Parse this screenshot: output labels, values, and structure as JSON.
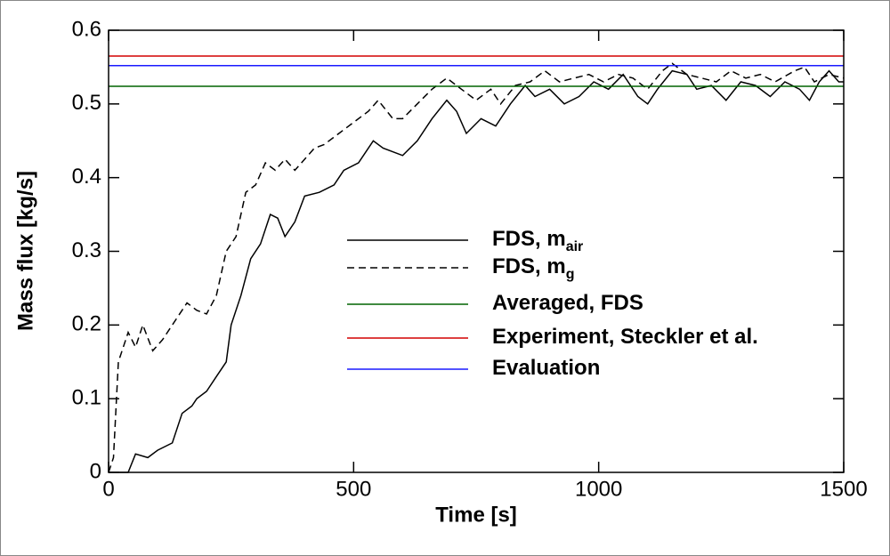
{
  "chart_data": {
    "type": "line",
    "xlabel": "Time [s]",
    "ylabel": "Mass flux [kg/s]",
    "xlim": [
      0,
      1500
    ],
    "ylim": [
      0,
      0.6
    ],
    "xticks": [
      0,
      500,
      1000,
      1500
    ],
    "yticks": [
      0,
      0.1,
      0.2,
      0.3,
      0.4,
      0.5,
      0.6
    ],
    "series": [
      {
        "name": "FDS, m",
        "name_sub": "air",
        "color": "#000000",
        "line_style": "solid",
        "x": [
          0,
          40,
          55,
          80,
          100,
          130,
          150,
          170,
          180,
          200,
          220,
          240,
          250,
          270,
          290,
          310,
          330,
          345,
          360,
          380,
          400,
          430,
          460,
          480,
          510,
          540,
          560,
          600,
          630,
          660,
          690,
          710,
          730,
          760,
          790,
          820,
          850,
          870,
          900,
          930,
          960,
          990,
          1020,
          1050,
          1080,
          1100,
          1120,
          1150,
          1180,
          1200,
          1230,
          1260,
          1290,
          1320,
          1350,
          1380,
          1410,
          1430,
          1450,
          1470,
          1490,
          1500
        ],
        "values": [
          0,
          0,
          0.025,
          0.02,
          0.03,
          0.04,
          0.08,
          0.09,
          0.1,
          0.11,
          0.13,
          0.15,
          0.2,
          0.24,
          0.29,
          0.31,
          0.35,
          0.345,
          0.32,
          0.34,
          0.375,
          0.38,
          0.39,
          0.41,
          0.42,
          0.45,
          0.44,
          0.43,
          0.45,
          0.48,
          0.505,
          0.49,
          0.46,
          0.48,
          0.47,
          0.5,
          0.525,
          0.51,
          0.52,
          0.5,
          0.51,
          0.53,
          0.52,
          0.54,
          0.51,
          0.5,
          0.52,
          0.545,
          0.54,
          0.52,
          0.525,
          0.505,
          0.53,
          0.525,
          0.51,
          0.53,
          0.52,
          0.505,
          0.53,
          0.545,
          0.53,
          0.53
        ]
      },
      {
        "name": "FDS, m",
        "name_sub": "g",
        "color": "#000000",
        "line_style": "dashed",
        "x": [
          0,
          10,
          20,
          40,
          55,
          70,
          90,
          110,
          130,
          160,
          180,
          200,
          220,
          240,
          260,
          280,
          300,
          320,
          340,
          360,
          380,
          420,
          440,
          470,
          500,
          530,
          550,
          580,
          600,
          630,
          660,
          690,
          720,
          750,
          780,
          800,
          830,
          860,
          890,
          920,
          950,
          980,
          1010,
          1040,
          1070,
          1100,
          1130,
          1150,
          1180,
          1210,
          1240,
          1270,
          1300,
          1330,
          1360,
          1400,
          1420,
          1440,
          1470,
          1500
        ],
        "values": [
          0,
          0.02,
          0.15,
          0.19,
          0.17,
          0.2,
          0.165,
          0.18,
          0.2,
          0.23,
          0.22,
          0.215,
          0.24,
          0.3,
          0.32,
          0.38,
          0.39,
          0.42,
          0.41,
          0.425,
          0.41,
          0.44,
          0.445,
          0.46,
          0.475,
          0.49,
          0.505,
          0.48,
          0.48,
          0.5,
          0.52,
          0.535,
          0.52,
          0.505,
          0.52,
          0.5,
          0.525,
          0.53,
          0.545,
          0.53,
          0.535,
          0.54,
          0.53,
          0.54,
          0.535,
          0.52,
          0.545,
          0.555,
          0.54,
          0.535,
          0.53,
          0.545,
          0.535,
          0.54,
          0.53,
          0.545,
          0.55,
          0.53,
          0.54,
          0.535
        ]
      },
      {
        "name": "Averaged,  FDS",
        "color": "#006400",
        "line_style": "solid",
        "x": [
          0,
          1500
        ],
        "values": [
          0.524,
          0.524
        ]
      },
      {
        "name": "Experiment, Steckler et al.",
        "color": "#d40000",
        "line_style": "solid",
        "x": [
          0,
          1500
        ],
        "values": [
          0.565,
          0.565
        ]
      },
      {
        "name": "Evaluation",
        "color": "#1a1aff",
        "line_style": "solid",
        "x": [
          0,
          1500
        ],
        "values": [
          0.552,
          0.552
        ]
      }
    ]
  }
}
